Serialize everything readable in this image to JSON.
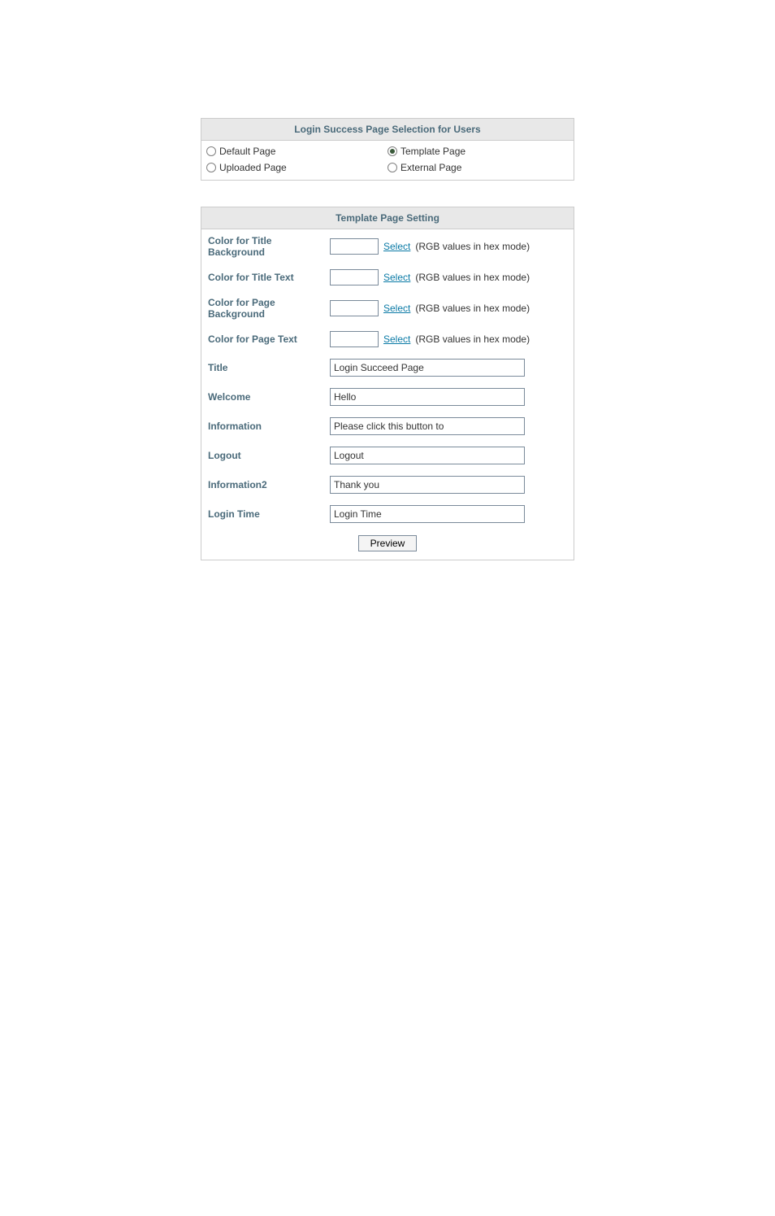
{
  "colors": {
    "panel_border": "#cccccc",
    "panel_header_bg": "#e8e8e8",
    "header_text": "#4a6a7a",
    "label_text": "#4a6a7a",
    "body_text": "#333333",
    "link": "#0a7aa6",
    "input_border": "#7a8a9a",
    "radio_border": "#808080",
    "radio_checked_fill": "#3a5a3a",
    "button_bg": "#f4f4f4",
    "page_bg": "#ffffff"
  },
  "selection_panel": {
    "title": "Login Success Page Selection for Users",
    "options": {
      "default": {
        "label": "Default Page",
        "checked": false
      },
      "template": {
        "label": "Template Page",
        "checked": true
      },
      "uploaded": {
        "label": "Uploaded Page",
        "checked": false
      },
      "external": {
        "label": "External Page",
        "checked": false
      }
    }
  },
  "settings_panel": {
    "title": "Template Page Setting",
    "color_rows": [
      {
        "key": "title_bg",
        "label": "Color for Title Background",
        "value": ""
      },
      {
        "key": "title_txt",
        "label": "Color for Title Text",
        "value": ""
      },
      {
        "key": "page_bg",
        "label": "Color for Page Background",
        "value": ""
      },
      {
        "key": "page_txt",
        "label": "Color for Page Text",
        "value": ""
      }
    ],
    "select_link_label": "Select",
    "select_hint": "(RGB values in hex mode)",
    "text_rows": [
      {
        "key": "title",
        "label": "Title",
        "value": "Login Succeed Page"
      },
      {
        "key": "welcome",
        "label": "Welcome",
        "value": "Hello"
      },
      {
        "key": "information",
        "label": "Information",
        "value": "Please click this button to"
      },
      {
        "key": "logout",
        "label": "Logout",
        "value": "Logout"
      },
      {
        "key": "information2",
        "label": "Information2",
        "value": "Thank you"
      },
      {
        "key": "login_time",
        "label": "Login Time",
        "value": "Login Time"
      }
    ],
    "preview_button": "Preview"
  }
}
